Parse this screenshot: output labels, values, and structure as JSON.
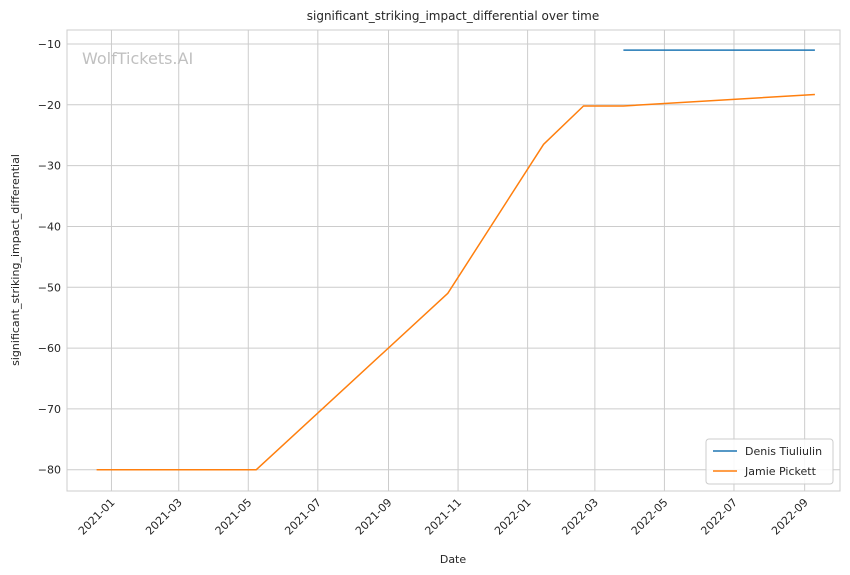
{
  "chart_data": {
    "type": "line",
    "title": "significant_striking_impact_differential over time",
    "xlabel": "Date",
    "ylabel": "significant_striking_impact_differential",
    "watermark": "WolfTickets.AI",
    "x_ticks": [
      "2021-01",
      "2021-03",
      "2021-05",
      "2021-07",
      "2021-09",
      "2021-11",
      "2022-01",
      "2022-03",
      "2022-05",
      "2022-07",
      "2022-09"
    ],
    "xlim": [
      "2020-11-23",
      "2022-10-02"
    ],
    "y_ticks": [
      -80,
      -70,
      -60,
      -50,
      -40,
      -30,
      -20,
      -10
    ],
    "ylim": [
      -83.5,
      -7.7
    ],
    "grid": true,
    "legend_position": "lower-right",
    "series": [
      {
        "name": "Denis Tiuliulin",
        "color": "#1f77b4",
        "points": [
          {
            "x": "2022-03-26",
            "y": -11
          },
          {
            "x": "2022-09-10",
            "y": -11
          }
        ]
      },
      {
        "name": "Jamie Pickett",
        "color": "#ff7f0e",
        "points": [
          {
            "x": "2020-12-19",
            "y": -80
          },
          {
            "x": "2021-05-08",
            "y": -80
          },
          {
            "x": "2021-10-23",
            "y": -51
          },
          {
            "x": "2022-01-15",
            "y": -26.5
          },
          {
            "x": "2022-02-19",
            "y": -20.2
          },
          {
            "x": "2022-03-26",
            "y": -20.2
          },
          {
            "x": "2022-09-10",
            "y": -18.3
          }
        ]
      }
    ]
  }
}
